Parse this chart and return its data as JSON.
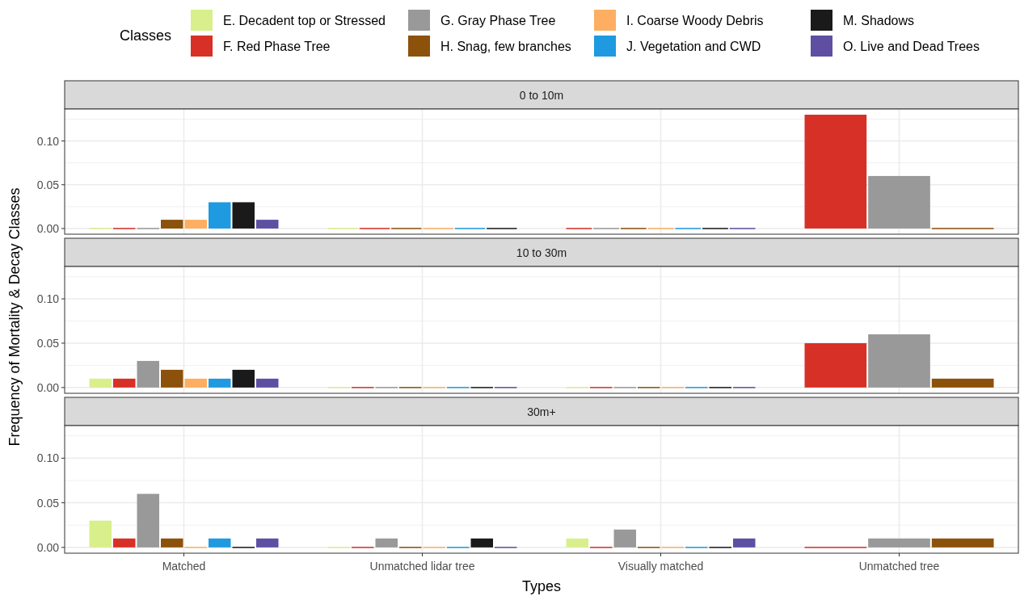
{
  "chart_data": [
    {
      "type": "bar",
      "title": "0 to 10m",
      "legend_title": "Classes",
      "legend": "top",
      "categories": [
        null,
        null,
        null,
        null
      ],
      "ylim": [
        -0.0065,
        0.1365
      ],
      "yticks": [
        {
          "value": 0,
          "label": "0.00"
        },
        {
          "value": 0.05,
          "label": "0.05"
        },
        {
          "value": 0.1,
          "label": "0.10"
        }
      ],
      "grid": true,
      "tick_labels": "y",
      "series": [
        {
          "name": "E. Decadent top or Stressed",
          "color": "#d9ef8b",
          "values": [
            0,
            0,
            null,
            null
          ]
        },
        {
          "name": "F. Red Phase Tree",
          "color": "#d73027",
          "values": [
            0,
            0,
            0,
            0.13
          ]
        },
        {
          "name": "G. Gray Phase Tree",
          "color": "#999999",
          "values": [
            0,
            null,
            0,
            0.06
          ]
        },
        {
          "name": "H. Snag, few branches",
          "color": "#8c510a",
          "values": [
            0.01,
            0,
            0,
            0
          ]
        },
        {
          "name": "I. Coarse Woody Debris",
          "color": "#fdae61",
          "values": [
            0.01,
            0,
            0,
            null
          ]
        },
        {
          "name": "J. Vegetation and CWD",
          "color": "#1f9ae0",
          "values": [
            0.03,
            0,
            0,
            null
          ]
        },
        {
          "name": "M. Shadows",
          "color": "#1a1a1a",
          "values": [
            0.03,
            0,
            0,
            null
          ]
        },
        {
          "name": "O. Live and Dead Trees",
          "color": "#5e4fa2",
          "values": [
            0.01,
            null,
            0,
            null
          ]
        }
      ]
    },
    {
      "type": "bar",
      "title": "10 to 30m",
      "ylabel": "Frequency of Mortality & Decay Classes",
      "categories": [
        null,
        null,
        null,
        null
      ],
      "ylim": [
        -0.0065,
        0.1365
      ],
      "yticks": [
        {
          "value": 0,
          "label": "0.00"
        },
        {
          "value": 0.05,
          "label": "0.05"
        },
        {
          "value": 0.1,
          "label": "0.10"
        }
      ],
      "grid": true,
      "tick_labels": "y",
      "series": [
        {
          "color": "#d9ef8b",
          "values": [
            0.01,
            0,
            0,
            null
          ]
        },
        {
          "color": "#d73027",
          "values": [
            0.01,
            0,
            0,
            0.05
          ]
        },
        {
          "color": "#999999",
          "values": [
            0.03,
            0,
            0,
            0.06
          ]
        },
        {
          "color": "#8c510a",
          "values": [
            0.02,
            0,
            0,
            0.01
          ]
        },
        {
          "color": "#fdae61",
          "values": [
            0.01,
            0,
            0,
            null
          ]
        },
        {
          "color": "#1f9ae0",
          "values": [
            0.01,
            0,
            0,
            null
          ]
        },
        {
          "color": "#1a1a1a",
          "values": [
            0.02,
            0,
            0,
            null
          ]
        },
        {
          "color": "#5e4fa2",
          "values": [
            0.01,
            0,
            0,
            null
          ]
        }
      ]
    },
    {
      "type": "bar",
      "title": "30m+",
      "xlabel": "Types",
      "categories": [
        "Matched",
        "Unmatched lidar tree",
        "Visually matched",
        "Unmatched tree"
      ],
      "ylim": [
        -0.0065,
        0.1365
      ],
      "yticks": [
        {
          "value": 0,
          "label": "0.00"
        },
        {
          "value": 0.05,
          "label": "0.05"
        },
        {
          "value": 0.1,
          "label": "0.10"
        }
      ],
      "grid": true,
      "series": [
        {
          "color": "#d9ef8b",
          "values": [
            0.03,
            0,
            0.01,
            null
          ]
        },
        {
          "color": "#d73027",
          "values": [
            0.01,
            0,
            0,
            0
          ]
        },
        {
          "color": "#999999",
          "values": [
            0.06,
            0.01,
            0.02,
            0.01
          ]
        },
        {
          "color": "#8c510a",
          "values": [
            0.01,
            0,
            0,
            0.01
          ]
        },
        {
          "color": "#fdae61",
          "values": [
            0,
            0,
            0,
            null
          ]
        },
        {
          "color": "#1f9ae0",
          "values": [
            0.01,
            0,
            0,
            null
          ]
        },
        {
          "color": "#1a1a1a",
          "values": [
            0,
            0.01,
            0,
            null
          ]
        },
        {
          "color": "#5e4fa2",
          "values": [
            0.01,
            0,
            0.01,
            null
          ]
        }
      ]
    }
  ]
}
